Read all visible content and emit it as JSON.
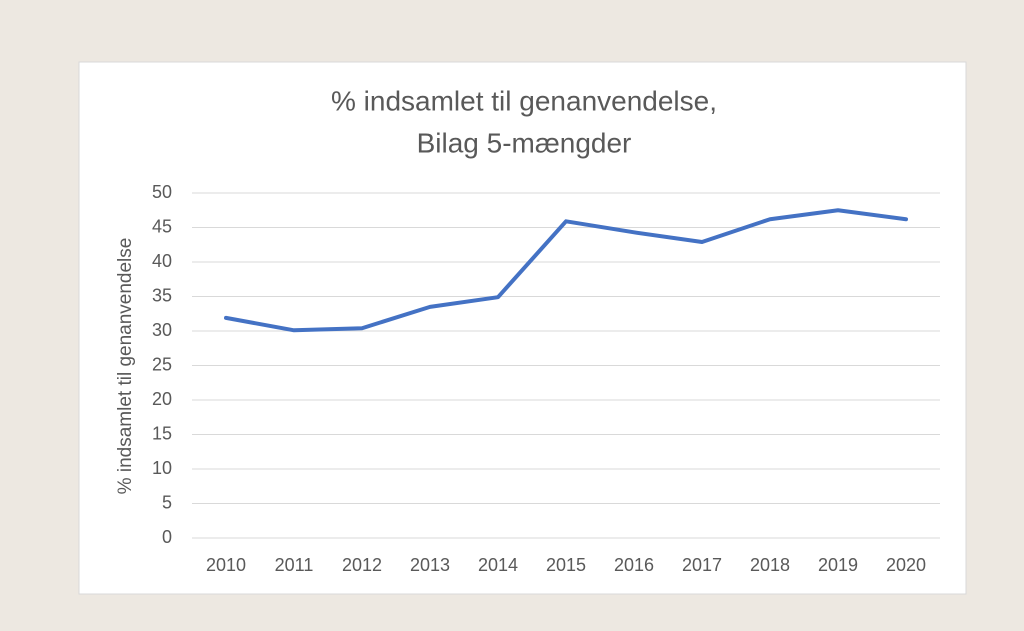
{
  "chart_data": {
    "type": "line",
    "title": [
      "% indsamlet til genanvendelse,",
      "Bilag 5-mængder"
    ],
    "y_label": "% indsamlet til genanvendelse",
    "categories": [
      "2010",
      "2011",
      "2012",
      "2013",
      "2014",
      "2015",
      "2016",
      "2017",
      "2018",
      "2019",
      "2020"
    ],
    "series": [
      {
        "name": "% indsamlet til genanvendelse",
        "color": "#4472c4",
        "values": [
          31.9,
          30.1,
          30.4,
          33.5,
          34.9,
          45.9,
          44.3,
          42.9,
          46.2,
          47.5,
          46.2
        ]
      }
    ],
    "ylim": [
      0,
      50
    ],
    "yticks": [
      0,
      5,
      10,
      15,
      20,
      25,
      30,
      35,
      40,
      45,
      50
    ],
    "grid": true
  }
}
